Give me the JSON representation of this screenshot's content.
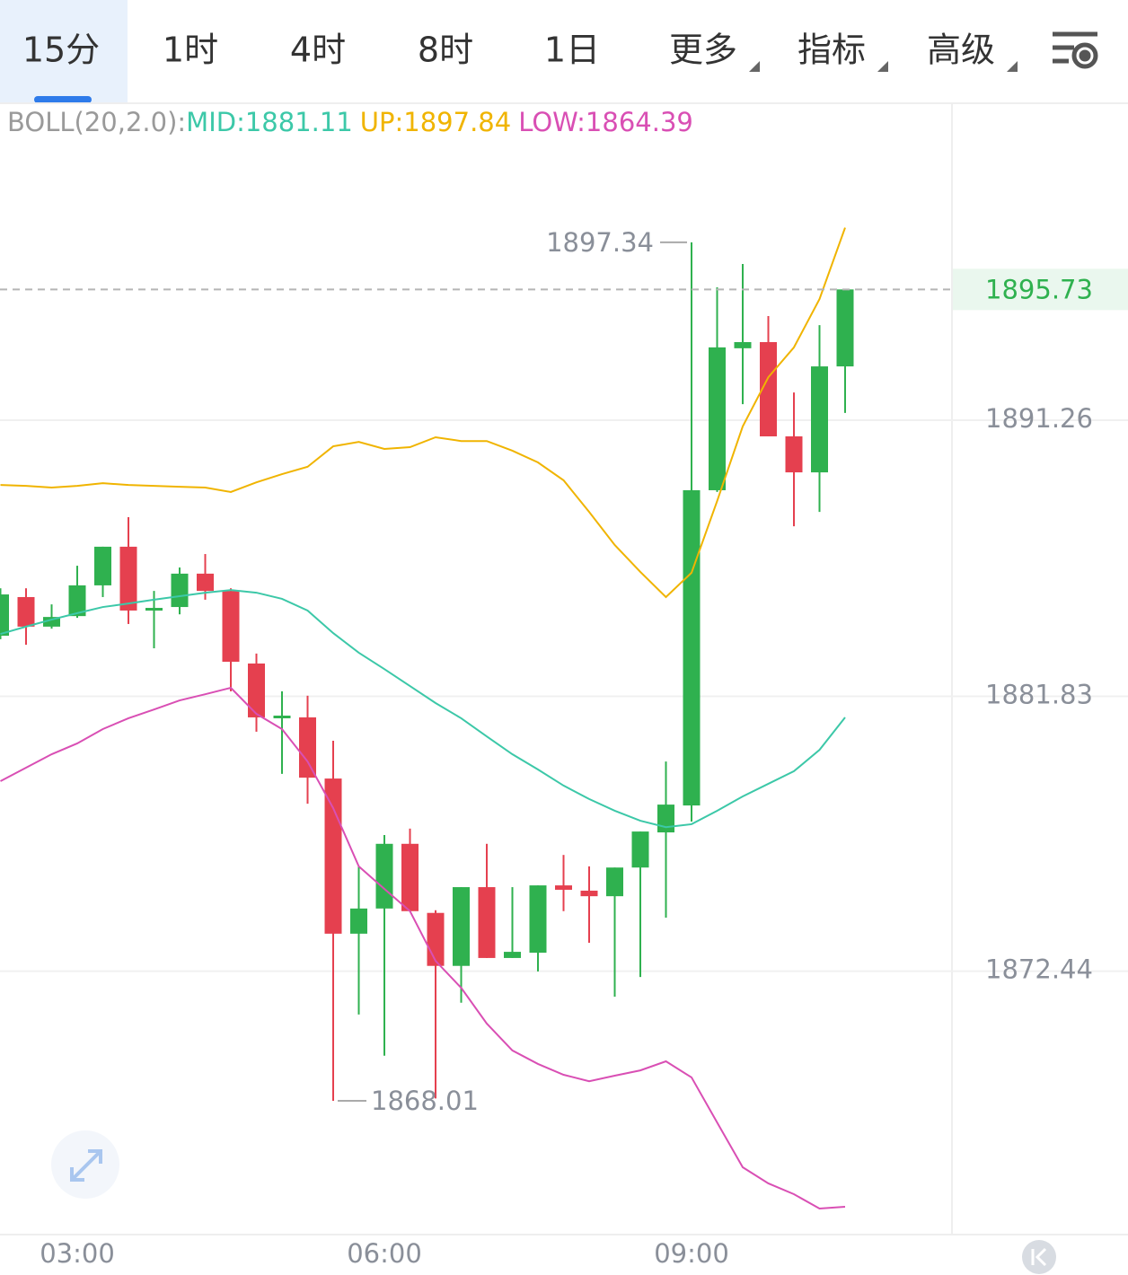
{
  "tabs": [
    "15分",
    "1时",
    "4时",
    "8时",
    "1日",
    "更多",
    "指标",
    "高级"
  ],
  "chart_data": {
    "type": "candlestick",
    "indicator": "BOLL(20,2.0):",
    "categories": [
      null,
      null,
      null,
      "03:00",
      null,
      null,
      null,
      null,
      null,
      null,
      null,
      null,
      null,
      null,
      null,
      "06:00",
      null,
      null,
      null,
      null,
      null,
      null,
      null,
      null,
      null,
      null,
      null,
      "09:00",
      null,
      null,
      null,
      null,
      null,
      null
    ],
    "open": [
      1883.9,
      1885.22,
      1884.21,
      1884.57,
      1885.62,
      1886.94,
      1884.76,
      1884.88,
      1886.02,
      1885.43,
      1882.95,
      1881.11,
      1881.11,
      1879.02,
      1873.72,
      1874.58,
      1876.79,
      1874.43,
      1872.62,
      1875.31,
      1872.89,
      1873.07,
      1875.37,
      1875.19,
      1875.0,
      1875.98,
      1877.18,
      1878.1,
      1888.87,
      1893.72,
      1893.93,
      1890.71,
      1889.48,
      1893.1
    ],
    "high": [
      1885.52,
      1885.52,
      1884.97,
      1886.29,
      1886.94,
      1887.95,
      1885.43,
      1886.23,
      1886.69,
      1885.52,
      1883.29,
      1882.0,
      1881.85,
      1880.31,
      1876.02,
      1877.09,
      1877.31,
      1874.52,
      1875.31,
      1876.79,
      1875.31,
      1875.37,
      1876.41,
      1876.02,
      1875.98,
      1877.21,
      1879.6,
      1897.34,
      1895.8,
      1896.6,
      1894.82,
      1892.21,
      1894.51,
      1895.73
    ],
    "low": [
      1883.78,
      1883.59,
      1884.14,
      1884.51,
      1885.22,
      1884.3,
      1883.47,
      1884.63,
      1885.13,
      1882.0,
      1880.62,
      1879.18,
      1878.16,
      1868.01,
      1870.96,
      1869.55,
      1874.49,
      1868.09,
      1871.36,
      1872.89,
      1872.89,
      1872.43,
      1874.49,
      1873.41,
      1871.57,
      1872.24,
      1874.27,
      1877.55,
      1888.81,
      1891.81,
      1890.71,
      1887.64,
      1888.13,
      1891.51
    ],
    "close": [
      1885.31,
      1884.21,
      1884.54,
      1885.62,
      1886.94,
      1884.76,
      1884.85,
      1886.02,
      1885.43,
      1883.01,
      1881.11,
      1881.17,
      1879.05,
      1873.72,
      1874.58,
      1876.79,
      1874.49,
      1872.62,
      1875.31,
      1872.89,
      1873.1,
      1875.37,
      1875.22,
      1875.0,
      1875.98,
      1877.21,
      1878.13,
      1888.87,
      1893.75,
      1893.93,
      1890.71,
      1889.48,
      1893.1,
      1895.73
    ],
    "up_color": "#2fb14f",
    "down_color": "#e5404f",
    "overlays": [
      {
        "name": "MID:",
        "color": "#3cc8a8",
        "values": [
          1883.96,
          1884.21,
          1884.45,
          1884.67,
          1884.88,
          1885.0,
          1885.13,
          1885.25,
          1885.37,
          1885.46,
          1885.37,
          1885.16,
          1884.76,
          1883.99,
          1883.32,
          1882.76,
          1882.18,
          1881.6,
          1881.08,
          1880.46,
          1879.85,
          1879.33,
          1878.78,
          1878.32,
          1877.92,
          1877.58,
          1877.36,
          1877.46,
          1877.92,
          1878.41,
          1878.84,
          1879.27,
          1880.0,
          1881.11
        ]
      },
      {
        "name": "UP:",
        "color": "#f0b400",
        "values": [
          1889.05,
          1889.02,
          1888.96,
          1889.02,
          1889.11,
          1889.05,
          1889.02,
          1888.99,
          1888.96,
          1888.81,
          1889.14,
          1889.42,
          1889.67,
          1890.37,
          1890.52,
          1890.28,
          1890.34,
          1890.68,
          1890.55,
          1890.55,
          1890.22,
          1889.82,
          1889.21,
          1888.13,
          1887.0,
          1886.08,
          1885.22,
          1886.05,
          1888.5,
          1891.05,
          1892.73,
          1893.75,
          1895.4,
          1897.84
        ]
      },
      {
        "name": "LOW:",
        "color": "#d94fb4",
        "values": [
          1878.93,
          1879.39,
          1879.85,
          1880.22,
          1880.71,
          1881.08,
          1881.38,
          1881.69,
          1881.9,
          1882.12,
          1881.23,
          1880.71,
          1879.6,
          1878.01,
          1876.02,
          1875.25,
          1874.49,
          1872.79,
          1871.87,
          1870.65,
          1869.73,
          1869.27,
          1868.9,
          1868.68,
          1868.87,
          1869.05,
          1869.36,
          1868.81,
          1867.27,
          1865.74,
          1865.19,
          1864.82,
          1864.33,
          1864.39
        ]
      }
    ],
    "ylim": [
      1863.44,
      1902.09
    ],
    "yticks": [
      1872.44,
      1881.83,
      1891.26
    ],
    "grid": true
  }
}
